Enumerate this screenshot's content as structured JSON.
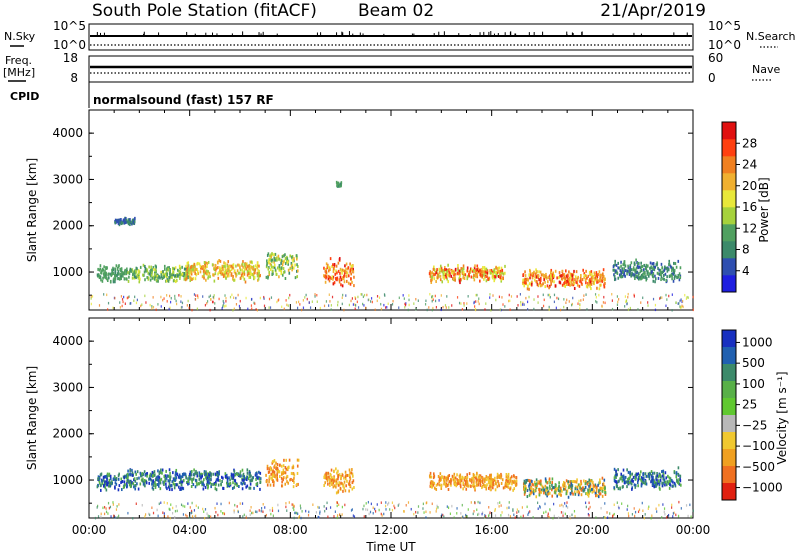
{
  "header": {
    "title": "South Pole Station (fitACF)",
    "beam": "Beam 02",
    "date": "21/Apr/2019"
  },
  "status": {
    "nsky_label": "N.Sky",
    "nsky_ticks": [
      "10^5",
      "10^0"
    ],
    "nsearch_label": "N.Search",
    "nsearch_ticks": [
      "10^5",
      "10^0"
    ],
    "freq_label_1": "Freq.",
    "freq_label_2": "[MHz]",
    "freq_ticks": [
      "18",
      "8"
    ],
    "nave_label": "Nave",
    "nave_ticks": [
      "60",
      "0"
    ],
    "cpid_label": "CPID",
    "cpid_text": "normalsound (fast) 157 RF"
  },
  "chart_data": [
    {
      "type": "heatmap",
      "name": "power",
      "ylabel": "Slant Range [km]",
      "ylim": [
        180,
        4500
      ],
      "yticks": [
        1000,
        2000,
        3000,
        4000
      ],
      "xlim": [
        0,
        24
      ],
      "xticks": [
        "00:00",
        "04:00",
        "08:00",
        "12:00",
        "16:00",
        "20:00",
        "00:00"
      ],
      "colorbar": {
        "label": "Power [dB]",
        "ticks": [
          "4",
          "8",
          "12",
          "16",
          "20",
          "24",
          "28"
        ],
        "colors": [
          "#1f1fe0",
          "#2f4fb0",
          "#3c8a6a",
          "#50a060",
          "#a6d23c",
          "#e8e83a",
          "#f0b030",
          "#f08020",
          "#ff4010",
          "#e01010"
        ]
      },
      "features": [
        {
          "time": [
            0.3,
            1.5
          ],
          "range": [
            800,
            1200
          ],
          "level": "8-12"
        },
        {
          "time": [
            1.0,
            1.8
          ],
          "range": [
            2050,
            2200
          ],
          "level": "4-8"
        },
        {
          "time": [
            1.5,
            4.0
          ],
          "range": [
            800,
            1200
          ],
          "level": "8-16"
        },
        {
          "time": [
            3.8,
            6.8
          ],
          "range": [
            800,
            1300
          ],
          "level": "12-24"
        },
        {
          "time": [
            7.0,
            8.3
          ],
          "range": [
            850,
            1500
          ],
          "level": "8-20"
        },
        {
          "time": [
            9.3,
            10.5
          ],
          "range": [
            700,
            1350
          ],
          "level": "16-28"
        },
        {
          "time": [
            9.8,
            10.0
          ],
          "range": [
            2850,
            3000
          ],
          "level": "8-12"
        },
        {
          "time": [
            13.5,
            16.5
          ],
          "range": [
            800,
            1200
          ],
          "level": "12-28"
        },
        {
          "time": [
            17.2,
            20.5
          ],
          "range": [
            650,
            1100
          ],
          "level": "16-28"
        },
        {
          "time": [
            20.8,
            23.5
          ],
          "range": [
            800,
            1300
          ],
          "level": "4-12"
        }
      ]
    },
    {
      "type": "heatmap",
      "name": "velocity",
      "ylabel": "Slant Range [km]",
      "ylim": [
        180,
        4500
      ],
      "yticks": [
        1000,
        2000,
        3000,
        4000
      ],
      "xlim": [
        0,
        24
      ],
      "xticks": [
        "00:00",
        "04:00",
        "08:00",
        "12:00",
        "16:00",
        "20:00",
        "00:00"
      ],
      "xlabel": "Time UT",
      "colorbar": {
        "label": "Velocity [m s⁻¹]",
        "ticks": [
          "1000",
          "500",
          "100",
          "25",
          "−25",
          "−100",
          "−500",
          "−1000"
        ],
        "colors": [
          "#1830c0",
          "#2060b0",
          "#3c8a6a",
          "#58b048",
          "#60c830",
          "#b8b8b8",
          "#f0c830",
          "#f0a020",
          "#f07020",
          "#e02010"
        ]
      },
      "features": [
        {
          "time": [
            0.3,
            1.5
          ],
          "range": [
            800,
            1200
          ],
          "level": "positive"
        },
        {
          "time": [
            1.5,
            6.8
          ],
          "range": [
            800,
            1300
          ],
          "level": "positive"
        },
        {
          "time": [
            7.0,
            8.3
          ],
          "range": [
            850,
            1500
          ],
          "level": "negative"
        },
        {
          "time": [
            9.3,
            10.5
          ],
          "range": [
            700,
            1350
          ],
          "level": "negative"
        },
        {
          "time": [
            13.5,
            17.0
          ],
          "range": [
            800,
            1200
          ],
          "level": "negative"
        },
        {
          "time": [
            17.2,
            20.5
          ],
          "range": [
            650,
            1100
          ],
          "level": "mixed"
        },
        {
          "time": [
            20.8,
            23.5
          ],
          "range": [
            800,
            1300
          ],
          "level": "positive"
        }
      ]
    }
  ]
}
